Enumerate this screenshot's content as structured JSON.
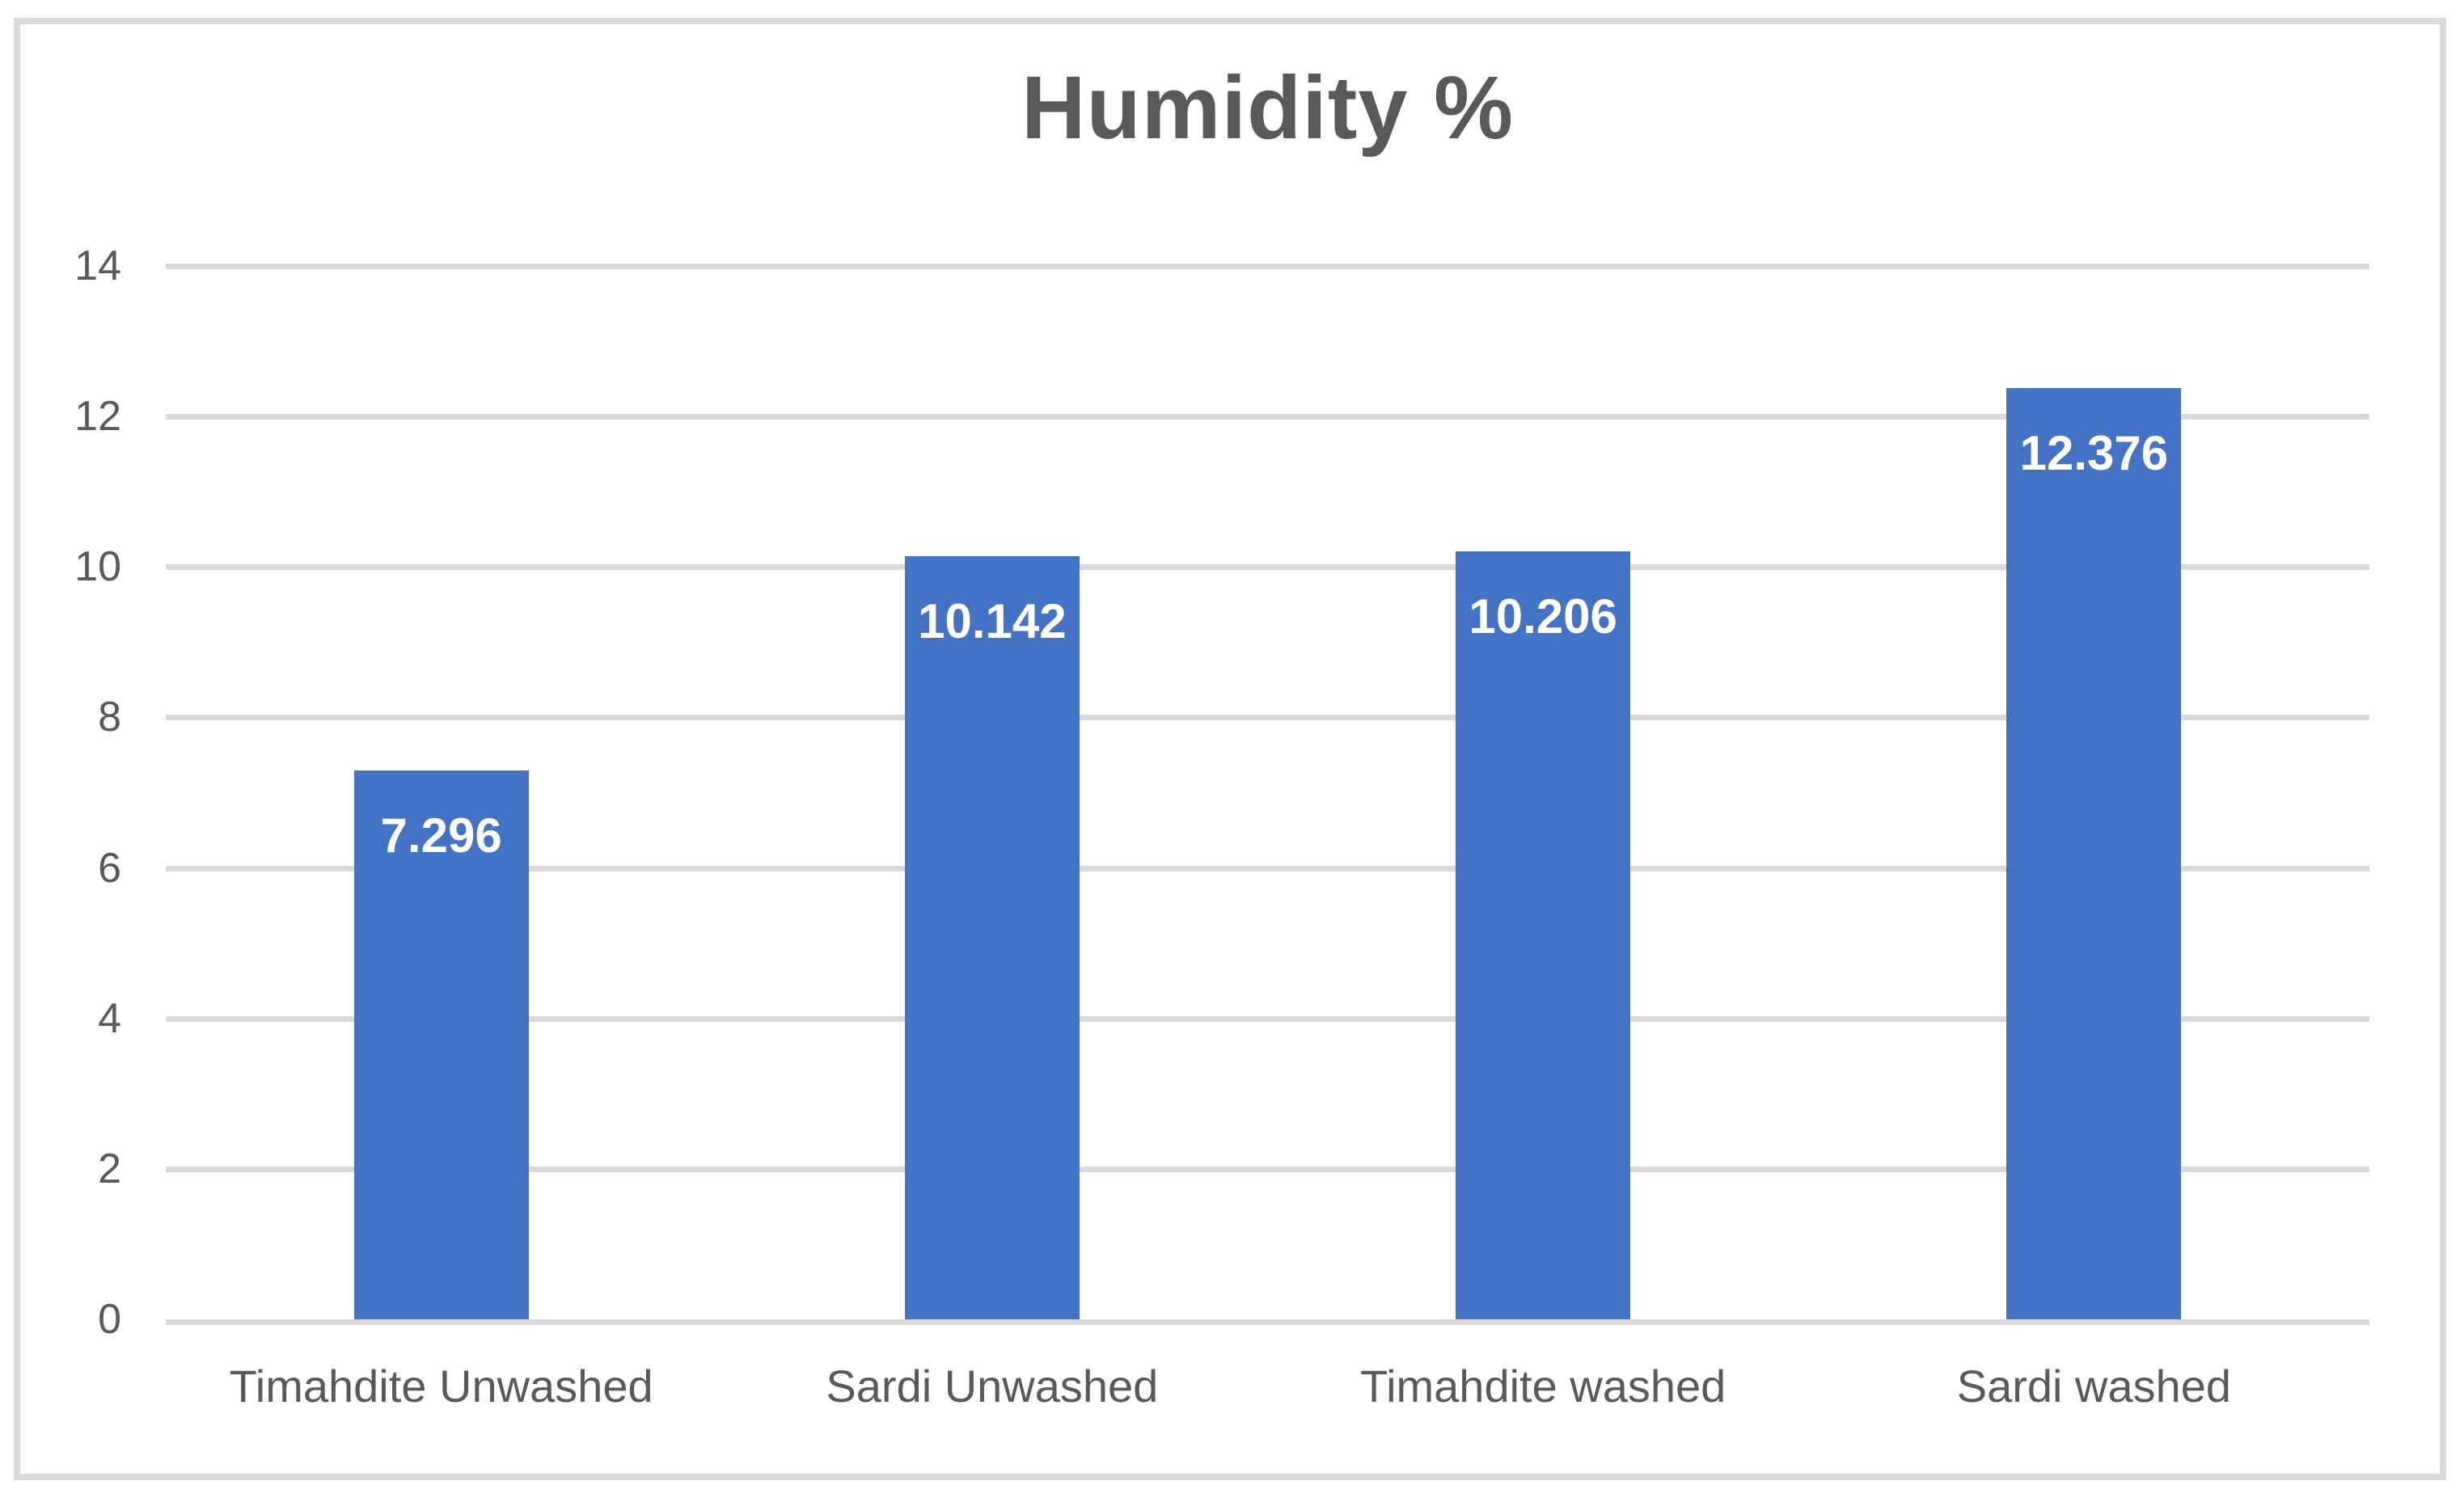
{
  "chart_data": {
    "type": "bar",
    "title": "Humidity %",
    "categories": [
      "Timahdite Unwashed",
      "Sardi Unwashed",
      "Timahdite washed",
      "Sardi washed"
    ],
    "values": [
      7.296,
      10.142,
      10.206,
      12.376
    ],
    "data_labels": [
      "7.296",
      "10.142",
      "10.206",
      "12.376"
    ],
    "xlabel": "",
    "ylabel": "",
    "ylim": [
      0,
      14
    ],
    "yticks": [
      0,
      2,
      4,
      6,
      8,
      10,
      12,
      14
    ],
    "grid": true,
    "legend_position": "none",
    "data_label_position": "inside-end",
    "colors": {
      "bar": "#4472C4",
      "gridline": "#D9D9D9",
      "axis_line": "#D9D9D9",
      "frame_border": "#D9D9D9",
      "title_text": "#595959",
      "axis_text": "#595959",
      "data_label_text": "#FFFFFF",
      "background": "#FFFFFF"
    }
  }
}
